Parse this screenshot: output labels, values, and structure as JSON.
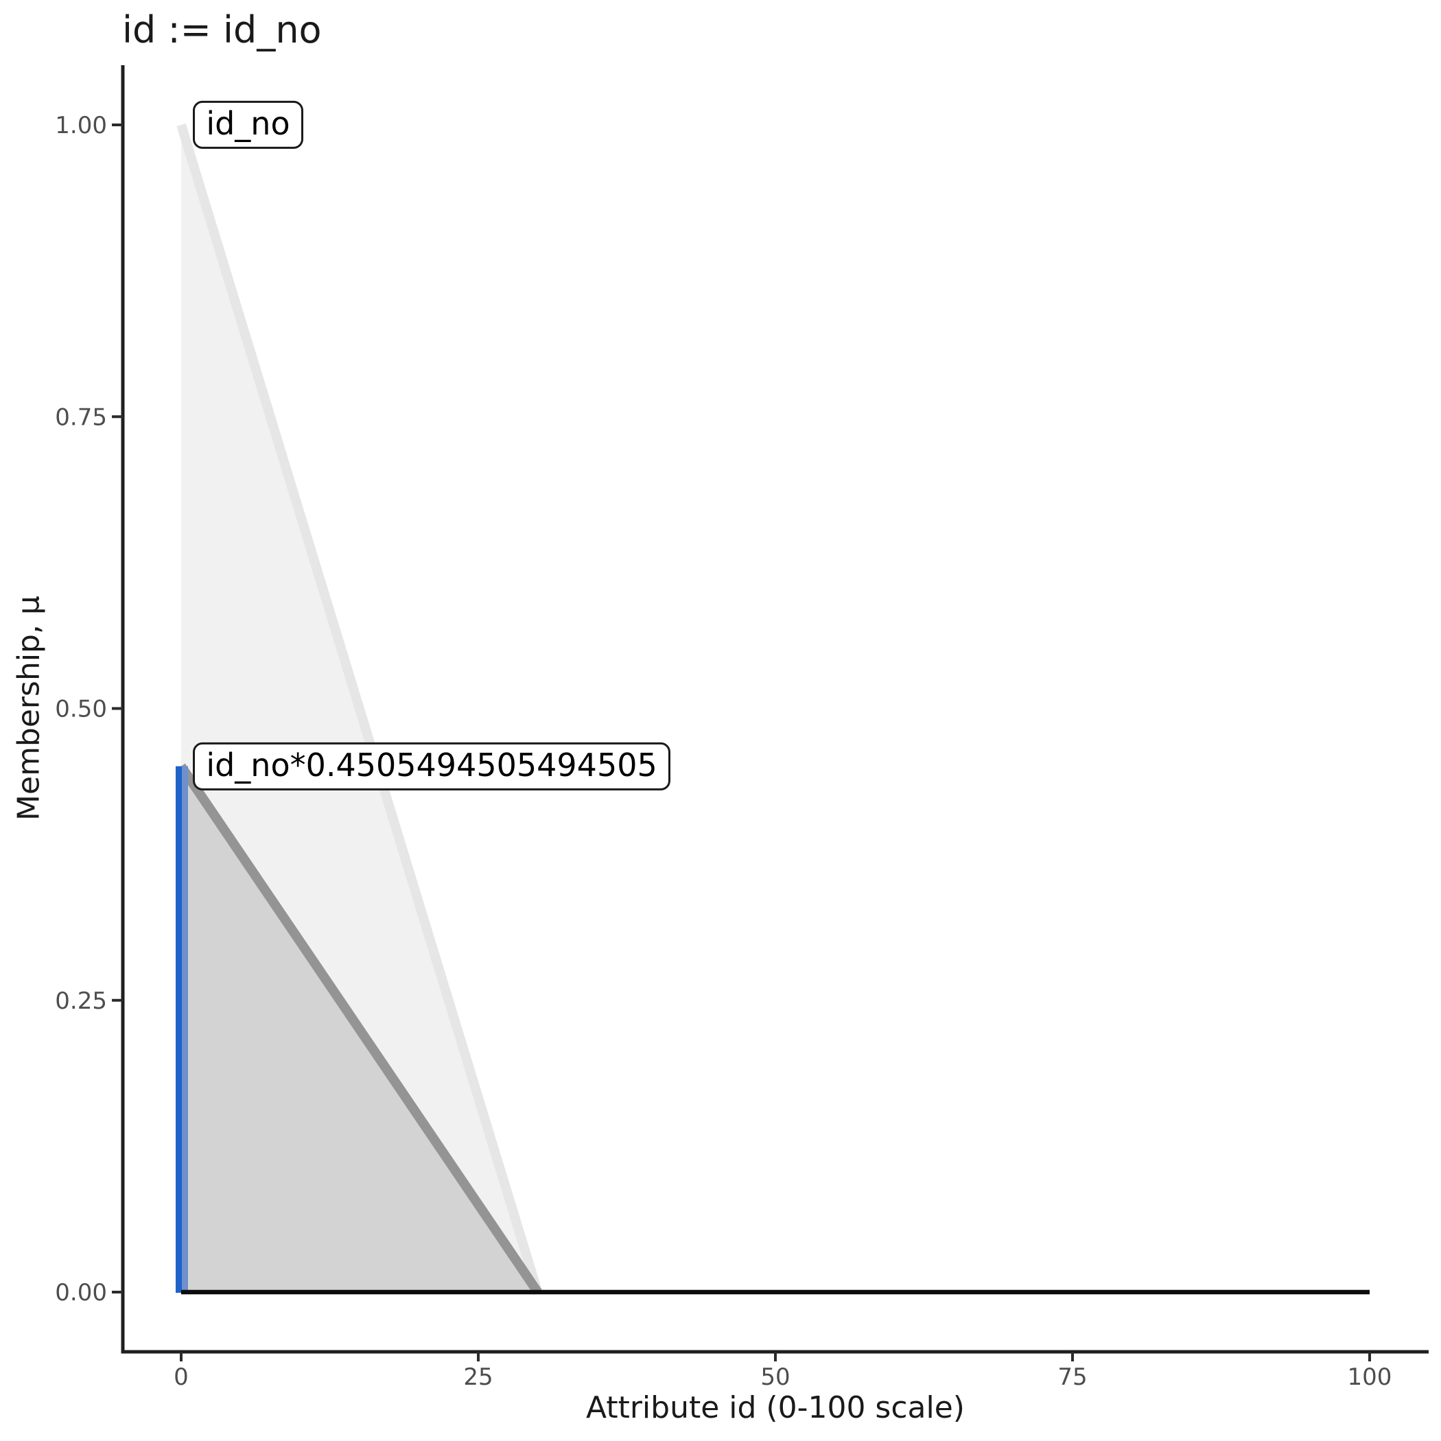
{
  "title": "id := id_no",
  "x_axis": {
    "label": "Attribute id (0-100 scale)",
    "tick_labels": [
      "0",
      "25",
      "50",
      "75",
      "100"
    ],
    "tick_values": [
      0,
      25,
      50,
      75,
      100
    ],
    "range": [
      0,
      100
    ]
  },
  "y_axis": {
    "label": "Membership, μ",
    "tick_labels": [
      "1.00",
      "0.75",
      "0.50",
      "0.25",
      "0.00"
    ],
    "tick_values": [
      1.0,
      0.75,
      0.5,
      0.25,
      0.0
    ],
    "range": [
      0,
      1
    ]
  },
  "chart_data": {
    "type": "area",
    "title": "id := id_no",
    "xlabel": "Attribute id (0-100 scale)",
    "ylabel": "Membership, μ",
    "xlim": [
      0,
      100
    ],
    "ylim": [
      0,
      1
    ],
    "grid": "off",
    "series": [
      {
        "name": "id_no",
        "points": [
          [
            0,
            1.0
          ],
          [
            30,
            0
          ]
        ],
        "fill_color": "#f1f1f1",
        "line_color": "#e6e6e6"
      },
      {
        "name": "id_no*0.4505494505494505",
        "points": [
          [
            0,
            0.4505494505494505
          ],
          [
            30,
            0
          ]
        ],
        "fill_color": "#d3d3d3",
        "line_color": "#949494"
      }
    ],
    "activation": {
      "x": 0,
      "mu": 0.4505494505494505,
      "line_colors": [
        "#1f63c9",
        "#6e90cc"
      ]
    },
    "baseline": {
      "y": 0,
      "x_start": 0,
      "x_end": 100,
      "color": "#0c0c0c"
    },
    "annotations": [
      {
        "text": "id_no",
        "anchor_x": 1,
        "anchor_y": 1.0
      },
      {
        "text": "id_no*0.4505494505494505",
        "anchor_x": 1,
        "anchor_y": 0.4505494505494505
      }
    ]
  },
  "colors": {
    "background": "#ffffff",
    "axis_line": "#1f1f1f",
    "tick_mark": "#2b2b2b",
    "tick_label": "#4d4d4d",
    "text": "#1a1a1a"
  }
}
